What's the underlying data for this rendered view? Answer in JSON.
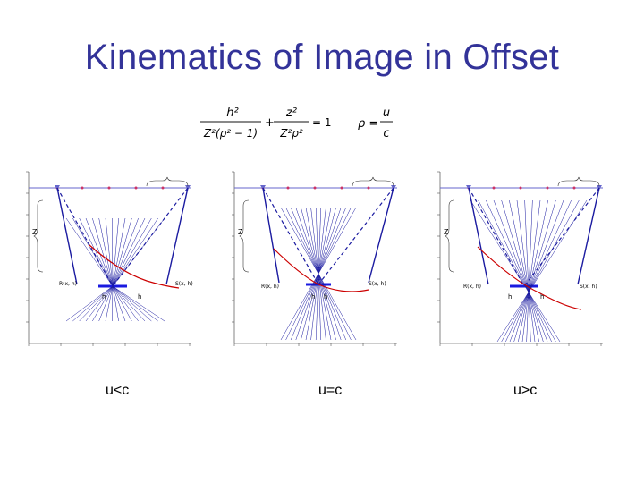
{
  "slide": {
    "title": "Kinematics of Image in Offset"
  },
  "formula": {
    "eq1_num1": "h²",
    "eq1_den1": "Z²(ρ² − 1)",
    "eq1_num2": "z²",
    "eq1_den2": "Z²ρ²",
    "eq1_rhs": "= 1",
    "eq2_lhs": "ρ =",
    "eq2_num": "u",
    "eq2_den": "c"
  },
  "panels": [
    {
      "caption": "u<c",
      "labels": {
        "z": "Z",
        "r": "R(x, h)",
        "s": "S(x, h)",
        "hl": "h",
        "hr": "h"
      },
      "colors": {
        "rays": "#1a1aa0",
        "curve": "#cc0000",
        "line": "#6666cc"
      }
    },
    {
      "caption": "u=c",
      "labels": {
        "z": "Z",
        "r": "R(x, h)",
        "s": "S(x, h)",
        "hl": "h",
        "hr": "h"
      },
      "colors": {
        "rays": "#1a1aa0",
        "curve": "#cc0000",
        "line": "#6666cc"
      }
    },
    {
      "caption": "u>c",
      "labels": {
        "z": "Z",
        "r": "R(x, h)",
        "s": "S(x, h)",
        "hl": "h",
        "hr": "h"
      },
      "colors": {
        "rays": "#1a1aa0",
        "curve": "#cc0000",
        "line": "#6666cc"
      }
    }
  ]
}
